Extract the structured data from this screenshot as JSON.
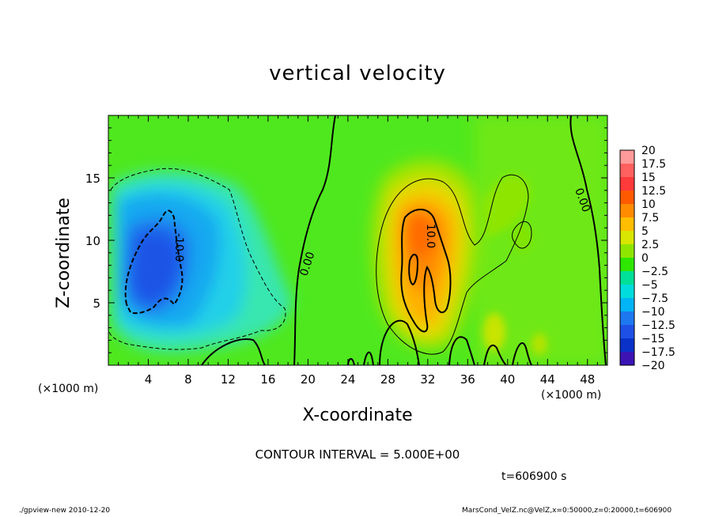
{
  "chart_data": {
    "type": "heatmap",
    "title": "vertical velocity",
    "xlabel": "X-coordinate",
    "ylabel": "Z-coordinate",
    "x_unit_left": "(×1000 m)",
    "x_unit_right": "(×1000 m)",
    "xlim": [
      0,
      50
    ],
    "ylim": [
      0,
      20
    ],
    "x_ticks": [
      "4",
      "8",
      "12",
      "16",
      "20",
      "24",
      "28",
      "32",
      "36",
      "40",
      "44",
      "48"
    ],
    "x_tick_values": [
      4,
      8,
      12,
      16,
      20,
      24,
      28,
      32,
      36,
      40,
      44,
      48
    ],
    "y_ticks": [
      "5",
      "10",
      "15"
    ],
    "y_tick_values": [
      5,
      10,
      15
    ],
    "colorbar": {
      "labels": [
        "20",
        "17.5",
        "15",
        "12.5",
        "10",
        "7.5",
        "5",
        "2.5",
        "0",
        "−2.5",
        "−5",
        "−7.5",
        "−10",
        "−12.5",
        "−15",
        "−17.5",
        "−20"
      ],
      "values": [
        20,
        17.5,
        15,
        12.5,
        10,
        7.5,
        5,
        2.5,
        0,
        -2.5,
        -5,
        -7.5,
        -10,
        -12.5,
        -15,
        -17.5,
        -20
      ],
      "colors": [
        "#ff9a9a",
        "#ff6060",
        "#ff3a3a",
        "#ff5a00",
        "#ff8c00",
        "#ffbe00",
        "#d8e600",
        "#8ee600",
        "#2ee600",
        "#00e096",
        "#00dcdc",
        "#00b4f5",
        "#1e78f0",
        "#1e50e6",
        "#0a32c8",
        "#3c14b4",
        "#7814b4"
      ]
    },
    "contour_labels": [
      "-10.0",
      "0.00",
      "10.0",
      "0.00"
    ],
    "contour_interval": "CONTOUR INTERVAL = 5.000E+00",
    "features": [
      {
        "name": "downdraft",
        "x_center": 5.5,
        "z_center": 9,
        "min_value": -12.5
      },
      {
        "name": "updraft",
        "x_center": 31.5,
        "z_center": 10,
        "max_value": 12.5
      }
    ],
    "grid": false,
    "legend": "right"
  },
  "annotations": {
    "time": "t=606900 s",
    "footer_left": "./gpview-new  2010-12-20",
    "footer_right": "MarsCond_VelZ.nc@VelZ,x=0:50000,z=0:20000,t=606900"
  }
}
